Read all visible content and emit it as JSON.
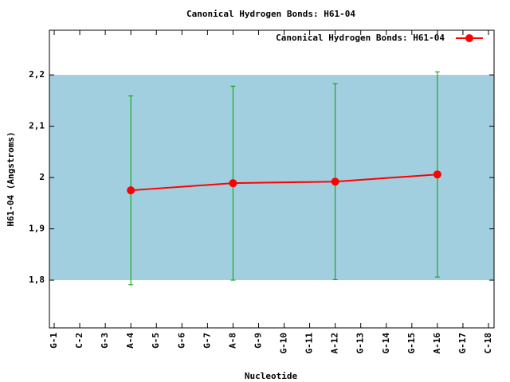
{
  "chart_data": {
    "type": "line",
    "title": "Canonical Hydrogen Bonds: H61-04",
    "x_label": "Nucleotide",
    "y_label": "H61-04 (Angstroms)",
    "categories": [
      "G-1",
      "C-2",
      "G-3",
      "A-4",
      "G-5",
      "G-6",
      "G-7",
      "A-8",
      "G-9",
      "G-10",
      "G-11",
      "A-12",
      "G-13",
      "G-14",
      "G-15",
      "A-16",
      "G-17",
      "C-18"
    ],
    "band": {
      "range": [
        1.8,
        2.2
      ],
      "color": "#a2cfdf"
    },
    "series": [
      {
        "name": "Canonical Hydrogen Bonds: H61-04",
        "color": "#ff0000",
        "error_color": "#00a000",
        "x": [
          "A-4",
          "A-8",
          "A-12",
          "A-16"
        ],
        "values": [
          1.975,
          1.989,
          1.992,
          2.006
        ],
        "errors": [
          0.184,
          0.189,
          0.191,
          0.2
        ]
      }
    ],
    "ylim": [
      1.707,
      2.287
    ],
    "yticks": [
      {
        "value": 1.8,
        "label": "1,8"
      },
      {
        "value": 1.9,
        "label": "1,9"
      },
      2,
      {
        "value": 2.1,
        "label": "2,1"
      },
      {
        "value": 2.2,
        "label": "2,2"
      }
    ],
    "legend": "top-right"
  }
}
